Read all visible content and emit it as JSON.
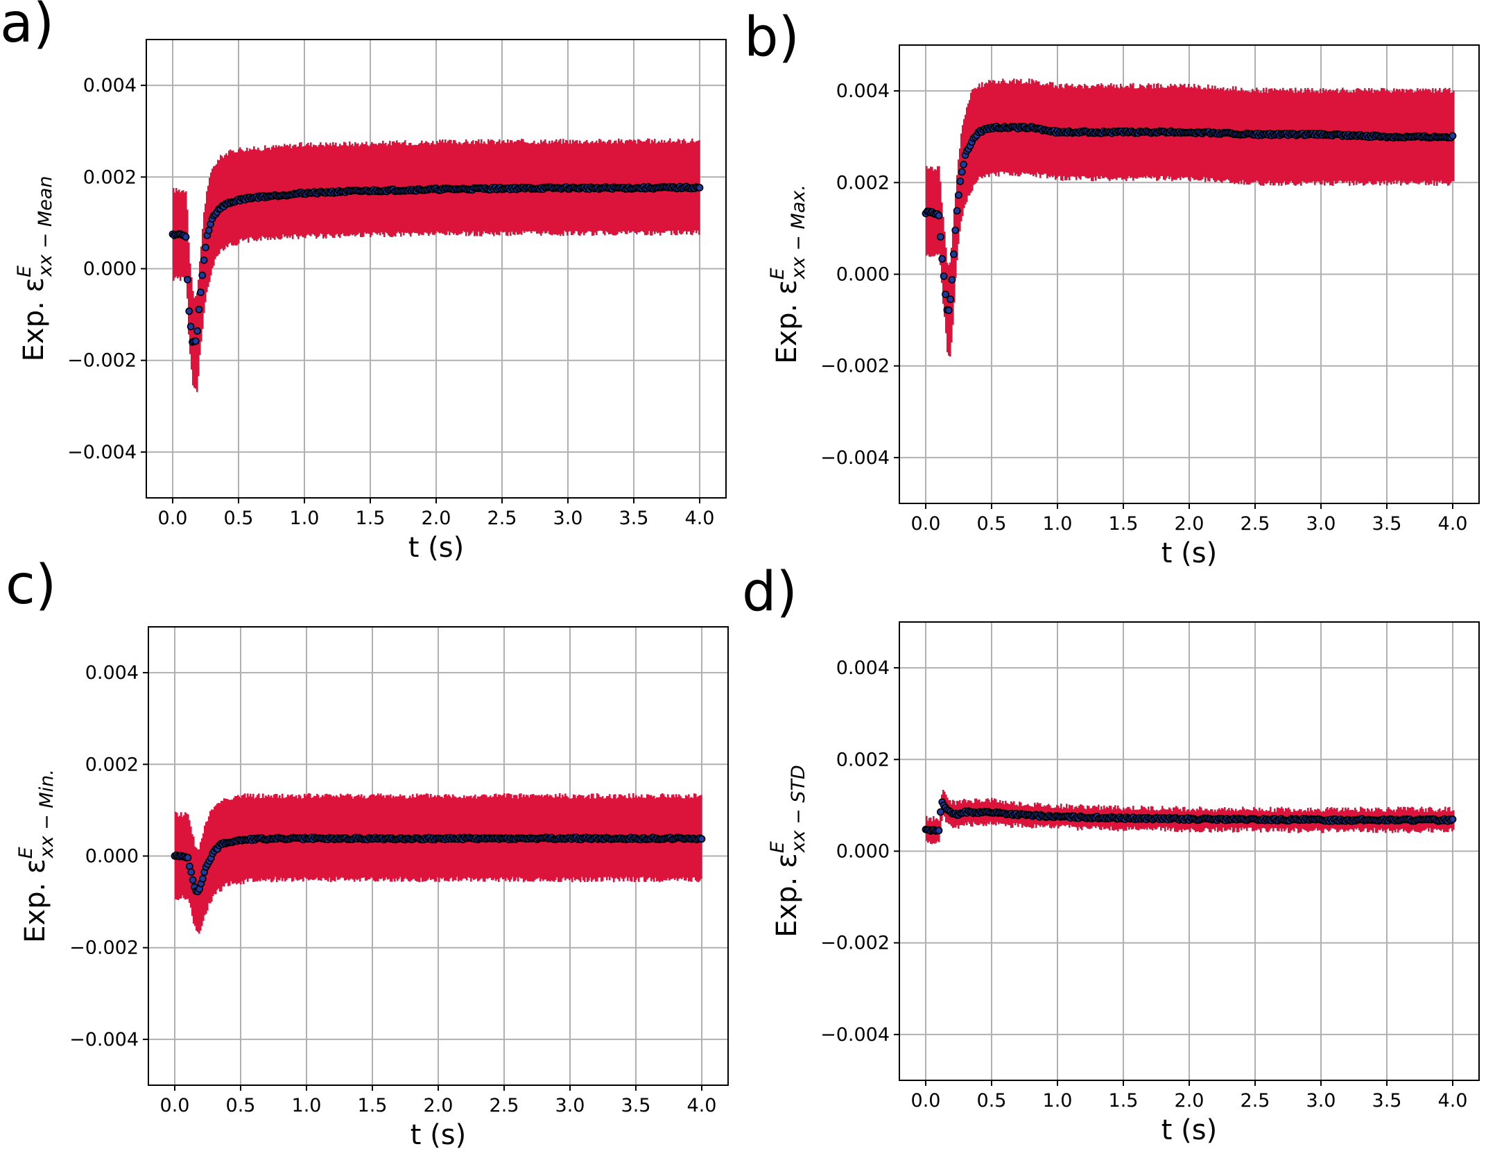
{
  "figure": {
    "colors": {
      "band": "#dc143c",
      "marker_face": "#1f3aa0",
      "marker_edge": "#000000",
      "grid": "#b0b0b0"
    }
  },
  "chart_data": [
    {
      "id": "a",
      "panel_label": "a)",
      "type": "scatter",
      "ylabel_prefix": "Exp. ε",
      "ylabel_sup": "E",
      "ylabel_sub": "xx − Mean",
      "xlabel": "t (s)",
      "xlim": [
        -0.2,
        4.2
      ],
      "ylim": [
        -0.005,
        0.005
      ],
      "xticks": [
        0.0,
        0.5,
        1.0,
        1.5,
        2.0,
        2.5,
        3.0,
        3.5,
        4.0
      ],
      "xtick_labels": [
        "0.0",
        "0.5",
        "1.0",
        "1.5",
        "2.0",
        "2.5",
        "3.0",
        "3.5",
        "4.0"
      ],
      "yticks": [
        -0.004,
        -0.002,
        0.0,
        0.002,
        0.004
      ],
      "ytick_labels": [
        "−0.004",
        "−0.002",
        "0.000",
        "0.002",
        "0.004"
      ],
      "series": [
        {
          "name": "mean",
          "x": [
            0.0,
            0.05,
            0.1,
            0.12,
            0.15,
            0.18,
            0.2,
            0.23,
            0.26,
            0.3,
            0.35,
            0.4,
            0.5,
            0.6,
            0.8,
            1.0,
            1.5,
            2.0,
            2.5,
            3.0,
            3.5,
            4.0
          ],
          "y": [
            0.00075,
            0.00075,
            0.0007,
            -0.0008,
            -0.0016,
            -0.0016,
            -0.0009,
            0.0,
            0.0007,
            0.0011,
            0.0013,
            0.0014,
            0.0015,
            0.00155,
            0.0016,
            0.00165,
            0.0017,
            0.00173,
            0.00175,
            0.00176,
            0.00176,
            0.00177
          ]
        },
        {
          "name": "band_upper",
          "x": [
            0.0,
            0.1,
            0.12,
            0.15,
            0.18,
            0.2,
            0.23,
            0.26,
            0.3,
            0.35,
            0.4,
            0.5,
            0.6,
            0.8,
            1.0,
            1.5,
            2.0,
            2.5,
            3.0,
            3.5,
            4.0
          ],
          "y": [
            0.0017,
            0.0017,
            0.0003,
            -0.0006,
            -0.0006,
            0.0001,
            0.0012,
            0.0018,
            0.0022,
            0.0024,
            0.0025,
            0.0026,
            0.0026,
            0.00265,
            0.0027,
            0.00272,
            0.00275,
            0.00276,
            0.00277,
            0.00277,
            0.00278
          ]
        },
        {
          "name": "band_lower",
          "x": [
            0.0,
            0.1,
            0.12,
            0.15,
            0.18,
            0.2,
            0.23,
            0.26,
            0.3,
            0.35,
            0.4,
            0.5,
            0.6,
            0.8,
            1.0,
            1.5,
            2.0,
            2.5,
            3.0,
            3.5,
            4.0
          ],
          "y": [
            -0.0002,
            -0.0002,
            -0.0017,
            -0.0026,
            -0.0027,
            -0.0019,
            -0.001,
            -0.0004,
            0.0001,
            0.0004,
            0.0005,
            0.0006,
            0.00065,
            0.0007,
            0.00072,
            0.00075,
            0.00077,
            0.00078,
            0.00078,
            0.00079,
            0.0008
          ]
        }
      ]
    },
    {
      "id": "b",
      "panel_label": "b)",
      "type": "scatter",
      "ylabel_prefix": "Exp. ε",
      "ylabel_sup": "E",
      "ylabel_sub": "xx − Max.",
      "xlabel": "t (s)",
      "xlim": [
        -0.2,
        4.2
      ],
      "ylim": [
        -0.005,
        0.005
      ],
      "xticks": [
        0.0,
        0.5,
        1.0,
        1.5,
        2.0,
        2.5,
        3.0,
        3.5,
        4.0
      ],
      "xtick_labels": [
        "0.0",
        "0.5",
        "1.0",
        "1.5",
        "2.0",
        "2.5",
        "3.0",
        "3.5",
        "4.0"
      ],
      "yticks": [
        -0.004,
        -0.002,
        0.0,
        0.002,
        0.004
      ],
      "ytick_labels": [
        "−0.004",
        "−0.002",
        "0.000",
        "0.002",
        "0.004"
      ],
      "series": [
        {
          "name": "max",
          "x": [
            0.0,
            0.05,
            0.1,
            0.12,
            0.14,
            0.16,
            0.18,
            0.2,
            0.23,
            0.26,
            0.3,
            0.35,
            0.4,
            0.5,
            0.6,
            0.8,
            1.0,
            1.5,
            2.0,
            2.5,
            3.0,
            3.5,
            4.0
          ],
          "y": [
            0.00135,
            0.00135,
            0.0013,
            0.0005,
            -0.0001,
            -0.0008,
            -0.0008,
            -0.0001,
            0.0012,
            0.002,
            0.0026,
            0.0029,
            0.0031,
            0.0032,
            0.0032,
            0.0032,
            0.0031,
            0.0031,
            0.0031,
            0.00305,
            0.00305,
            0.003,
            0.003
          ]
        },
        {
          "name": "band_upper",
          "x": [
            0.0,
            0.1,
            0.12,
            0.14,
            0.16,
            0.18,
            0.2,
            0.23,
            0.26,
            0.3,
            0.35,
            0.4,
            0.5,
            0.6,
            0.8,
            1.0,
            1.5,
            2.0,
            2.5,
            3.0,
            3.5,
            4.0
          ],
          "y": [
            0.0023,
            0.0023,
            0.0014,
            0.0008,
            0.0002,
            0.0002,
            0.0009,
            0.0021,
            0.003,
            0.0036,
            0.004,
            0.0041,
            0.0042,
            0.0042,
            0.0042,
            0.0041,
            0.0041,
            0.0041,
            0.004,
            0.004,
            0.004,
            0.004
          ]
        },
        {
          "name": "band_lower",
          "x": [
            0.0,
            0.1,
            0.12,
            0.14,
            0.16,
            0.18,
            0.2,
            0.23,
            0.26,
            0.3,
            0.35,
            0.4,
            0.5,
            0.6,
            0.8,
            1.0,
            1.5,
            2.0,
            2.5,
            3.0,
            3.5,
            4.0
          ],
          "y": [
            0.0004,
            0.0004,
            -0.0004,
            -0.001,
            -0.0018,
            -0.0018,
            -0.0011,
            0.0003,
            0.0011,
            0.0016,
            0.0019,
            0.0021,
            0.0022,
            0.0022,
            0.0022,
            0.0021,
            0.0021,
            0.0021,
            0.002,
            0.002,
            0.002,
            0.002
          ]
        }
      ]
    },
    {
      "id": "c",
      "panel_label": "c)",
      "type": "scatter",
      "ylabel_prefix": "Exp. ε",
      "ylabel_sup": "E",
      "ylabel_sub": "xx − Min.",
      "xlabel": "t (s)",
      "xlim": [
        -0.2,
        4.2
      ],
      "ylim": [
        -0.005,
        0.005
      ],
      "xticks": [
        0.0,
        0.5,
        1.0,
        1.5,
        2.0,
        2.5,
        3.0,
        3.5,
        4.0
      ],
      "xtick_labels": [
        "0.0",
        "0.5",
        "1.0",
        "1.5",
        "2.0",
        "2.5",
        "3.0",
        "3.5",
        "4.0"
      ],
      "yticks": [
        -0.004,
        -0.002,
        0.0,
        0.002,
        0.004
      ],
      "ytick_labels": [
        "−0.004",
        "−0.002",
        "0.000",
        "0.002",
        "0.004"
      ],
      "series": [
        {
          "name": "min",
          "x": [
            0.0,
            0.05,
            0.1,
            0.12,
            0.15,
            0.18,
            0.2,
            0.23,
            0.26,
            0.3,
            0.35,
            0.4,
            0.5,
            0.6,
            0.8,
            1.0,
            1.5,
            2.0,
            2.5,
            3.0,
            3.5,
            4.0
          ],
          "y": [
            0.0,
            0.0,
            -5e-05,
            -0.0003,
            -0.0007,
            -0.0008,
            -0.0006,
            -0.0003,
            -0.0001,
            0.0001,
            0.00025,
            0.0003,
            0.00035,
            0.00037,
            0.00038,
            0.00038,
            0.00038,
            0.00038,
            0.00038,
            0.00038,
            0.00038,
            0.00038
          ]
        },
        {
          "name": "band_upper",
          "x": [
            0.0,
            0.1,
            0.12,
            0.15,
            0.18,
            0.2,
            0.23,
            0.26,
            0.3,
            0.35,
            0.4,
            0.5,
            0.6,
            0.8,
            1.0,
            1.5,
            2.0,
            2.5,
            3.0,
            3.5,
            4.0
          ],
          "y": [
            0.0009,
            0.0009,
            0.0006,
            0.0002,
            0.0001,
            0.0004,
            0.0007,
            0.0009,
            0.0011,
            0.0012,
            0.00125,
            0.0013,
            0.0013,
            0.0013,
            0.0013,
            0.0013,
            0.0013,
            0.0013,
            0.0013,
            0.0013,
            0.0013
          ]
        },
        {
          "name": "band_lower",
          "x": [
            0.0,
            0.1,
            0.12,
            0.15,
            0.18,
            0.2,
            0.23,
            0.26,
            0.3,
            0.35,
            0.4,
            0.5,
            0.6,
            0.8,
            1.0,
            1.5,
            2.0,
            2.5,
            3.0,
            3.5,
            4.0
          ],
          "y": [
            -0.0009,
            -0.0009,
            -0.0012,
            -0.0016,
            -0.0017,
            -0.0015,
            -0.0012,
            -0.001,
            -0.0008,
            -0.0007,
            -0.0006,
            -0.00055,
            -0.0005,
            -0.0005,
            -0.0005,
            -0.0005,
            -0.0005,
            -0.0005,
            -0.0005,
            -0.0005,
            -0.0005
          ]
        }
      ]
    },
    {
      "id": "d",
      "panel_label": "d)",
      "type": "scatter",
      "ylabel_prefix": "Exp. ε",
      "ylabel_sup": "E",
      "ylabel_sub": "xx − STD",
      "xlabel": "t (s)",
      "xlim": [
        -0.2,
        4.2
      ],
      "ylim": [
        -0.005,
        0.005
      ],
      "xticks": [
        0.0,
        0.5,
        1.0,
        1.5,
        2.0,
        2.5,
        3.0,
        3.5,
        4.0
      ],
      "xtick_labels": [
        "0.0",
        "0.5",
        "1.0",
        "1.5",
        "2.0",
        "2.5",
        "3.0",
        "3.5",
        "4.0"
      ],
      "yticks": [
        -0.004,
        -0.002,
        0.0,
        0.002,
        0.004
      ],
      "ytick_labels": [
        "−0.004",
        "−0.002",
        "0.000",
        "0.002",
        "0.004"
      ],
      "series": [
        {
          "name": "std",
          "x": [
            0.0,
            0.05,
            0.1,
            0.12,
            0.14,
            0.17,
            0.2,
            0.25,
            0.3,
            0.4,
            0.5,
            0.6,
            0.8,
            1.0,
            1.5,
            2.0,
            2.5,
            3.0,
            3.5,
            4.0
          ],
          "y": [
            0.00045,
            0.00045,
            0.00045,
            0.0011,
            0.001,
            0.0009,
            0.0008,
            0.0008,
            0.00085,
            0.00085,
            0.00085,
            0.00082,
            0.00078,
            0.00075,
            0.00072,
            0.0007,
            0.00069,
            0.00068,
            0.00068,
            0.00068
          ]
        },
        {
          "name": "band_upper",
          "x": [
            0.0,
            0.1,
            0.12,
            0.14,
            0.17,
            0.2,
            0.25,
            0.3,
            0.4,
            0.5,
            0.6,
            0.8,
            1.0,
            1.5,
            2.0,
            2.5,
            3.0,
            3.5,
            4.0
          ],
          "y": [
            0.0007,
            0.0007,
            0.0014,
            0.0012,
            0.0011,
            0.00105,
            0.00105,
            0.00108,
            0.0011,
            0.0011,
            0.00105,
            0.001,
            0.00097,
            0.00093,
            0.00091,
            0.0009,
            0.0009,
            0.0009,
            0.0009
          ]
        },
        {
          "name": "band_lower",
          "x": [
            0.0,
            0.1,
            0.12,
            0.14,
            0.17,
            0.2,
            0.25,
            0.3,
            0.4,
            0.5,
            0.6,
            0.8,
            1.0,
            1.5,
            2.0,
            2.5,
            3.0,
            3.5,
            4.0
          ],
          "y": [
            0.0002,
            0.0002,
            0.0008,
            0.0007,
            0.0006,
            0.00055,
            0.00055,
            0.0006,
            0.0006,
            0.0006,
            0.00058,
            0.00055,
            0.00053,
            0.0005,
            0.00048,
            0.00047,
            0.00046,
            0.00046,
            0.00046
          ]
        }
      ]
    }
  ]
}
